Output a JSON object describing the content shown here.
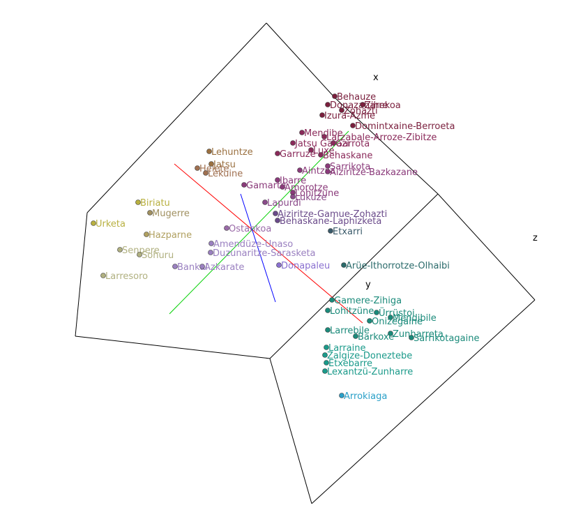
{
  "chart_data": {
    "type": "scatter3d",
    "axes": {
      "x_label": "x",
      "y_label": "y",
      "z_label": "z"
    },
    "legend": "none",
    "grid": false,
    "points": [
      {
        "name": "Behauze",
        "color": "#7a1f3d"
      },
      {
        "name": "Donazaharre",
        "color": "#7a1f3d"
      },
      {
        "name": "Izura-Azme",
        "color": "#7a1f3d"
      },
      {
        "name": "Zohazti",
        "color": "#7a1f3d"
      },
      {
        "name": "Zihekoa",
        "color": "#7a1f3d"
      },
      {
        "name": "Domintxaine-Berroeta",
        "color": "#7a1f3d"
      },
      {
        "name": "Mendibe",
        "color": "#8a2a5a"
      },
      {
        "name": "Larzabale-Arroze-Zibitze",
        "color": "#8a2a5a"
      },
      {
        "name": "Jatsu Garazi",
        "color": "#8a2a5a"
      },
      {
        "name": "Garrota",
        "color": "#8a2a5a"
      },
      {
        "name": "Luxe",
        "color": "#8a2a5a"
      },
      {
        "name": "Garruze",
        "color": "#8a2a5a"
      },
      {
        "name": "Behaskane",
        "color": "#8a2a5a"
      },
      {
        "name": "Sarrikota",
        "color": "#8a3a7a"
      },
      {
        "name": "Aintzila",
        "color": "#8a3a7a"
      },
      {
        "name": "Aiziritze-Bazkazane",
        "color": "#8a3a7a"
      },
      {
        "name": "Ibarre",
        "color": "#8a3a7a"
      },
      {
        "name": "Lohitzune",
        "color": "#8a3a7a"
      },
      {
        "name": "Amorotze",
        "color": "#8a3a7a"
      },
      {
        "name": "Gamarte",
        "color": "#8a3a7a"
      },
      {
        "name": "Lapurdi",
        "color": "#8a4a8a"
      },
      {
        "name": "Lukuze",
        "color": "#8a4a8a"
      },
      {
        "name": "Aiziritze-Gamue-Zohazti",
        "color": "#6a4a8a"
      },
      {
        "name": "Behaskane-Laphizketa",
        "color": "#6a4a8a"
      },
      {
        "name": "Etxarri",
        "color": "#3a5a6a"
      },
      {
        "name": "Ostankoa",
        "color": "#9a6aa8"
      },
      {
        "name": "Amendüze-Unaso",
        "color": "#9a80c0"
      },
      {
        "name": "Duzunaritze-Sarasketa",
        "color": "#9a80c0"
      },
      {
        "name": "Bankal",
        "color": "#9a80c0"
      },
      {
        "name": "Azkarate",
        "color": "#9a80c0"
      },
      {
        "name": "Donapaleu",
        "color": "#8a70d0"
      },
      {
        "name": "Lehuntze",
        "color": "#9a7040"
      },
      {
        "name": "Jatsu",
        "color": "#9a7040"
      },
      {
        "name": "Helete",
        "color": "#a07050"
      },
      {
        "name": "Lekuine",
        "color": "#a07050"
      },
      {
        "name": "Hazparne",
        "color": "#b0a060"
      },
      {
        "name": "Biriatu",
        "color": "#b8b040"
      },
      {
        "name": "Urketa",
        "color": "#b8b040"
      },
      {
        "name": "Mugerre",
        "color": "#a09060"
      },
      {
        "name": "Senpere",
        "color": "#b0b080"
      },
      {
        "name": "Sohuru",
        "color": "#b0b080"
      },
      {
        "name": "Larresoro",
        "color": "#b0b080"
      },
      {
        "name": "Arüe-Ithorrotze-Olhaibi",
        "color": "#2a6a6a"
      },
      {
        "name": "Gamere-Zihiga",
        "color": "#1a8a7a"
      },
      {
        "name": "Lohitzüne",
        "color": "#1a8a7a"
      },
      {
        "name": "Mendibile",
        "color": "#1a8a7a"
      },
      {
        "name": "Ürrüstoi",
        "color": "#1a8a7a"
      },
      {
        "name": "Onizegaine",
        "color": "#1a8a7a"
      },
      {
        "name": "Zunharreta",
        "color": "#1a8a7a"
      },
      {
        "name": "Larrebile",
        "color": "#1a8a7a"
      },
      {
        "name": "Barkoxe",
        "color": "#1a8a7a"
      },
      {
        "name": "Sarrikotagaine",
        "color": "#1a8a7a"
      },
      {
        "name": "Larraine",
        "color": "#1a9a8a"
      },
      {
        "name": "Zalgize-Doneztebe",
        "color": "#1a9a8a"
      },
      {
        "name": "Etxebarre",
        "color": "#1a9a8a"
      },
      {
        "name": "Lexantzü-Zunharre",
        "color": "#1a9a8a"
      },
      {
        "name": "Arrokiaga",
        "color": "#2aa0c8"
      }
    ]
  }
}
